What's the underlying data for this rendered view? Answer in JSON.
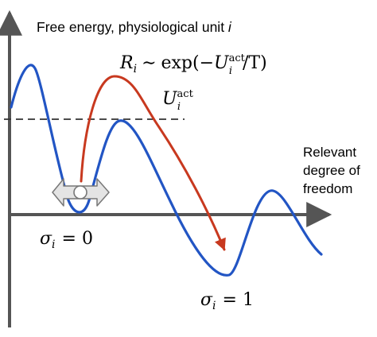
{
  "title": {
    "main": "Free energy, physiological unit ",
    "italic_var": "i"
  },
  "rate_formula": {
    "lhs": "R",
    "lhs_sub": "i",
    "relation": "∼",
    "func": "exp(−",
    "var": "U",
    "var_sub": "i",
    "var_sup": "act",
    "tail": "/T)"
  },
  "barrier_label": {
    "var": "U",
    "sub": "i",
    "sup": "act"
  },
  "axis_label": {
    "line1": "Relevant",
    "line2": "degree of",
    "line3": "freedom"
  },
  "state0_label": {
    "var": "σ",
    "sub": "i",
    "eq": "= 0"
  },
  "state1_label": {
    "var": "σ",
    "sub": "i",
    "eq": "= 1"
  },
  "colors": {
    "curve": "#2255c4",
    "transition_arrow": "#c8391f",
    "axes": "#555555",
    "dashed_line": "#333333",
    "marker_fill": "#e4e4e4",
    "marker_stroke": "#777777"
  }
}
